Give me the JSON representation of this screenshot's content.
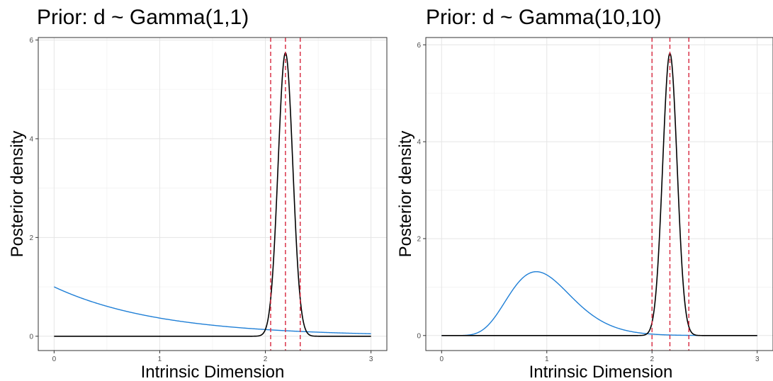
{
  "chart_data": [
    {
      "type": "line",
      "title": "Prior: d ~ Gamma(1,1)",
      "xlabel": "Intrinsic Dimension",
      "ylabel": "Posterior density",
      "xlim": [
        -0.15,
        3.15
      ],
      "ylim": [
        -0.29,
        6.05
      ],
      "xticks": [
        0,
        1,
        2,
        3
      ],
      "yticks": [
        0,
        2,
        4,
        6
      ],
      "grid": true,
      "colors": {
        "prior": "#1f7fd6",
        "posterior": "#000000",
        "vline": "#d7263d"
      },
      "series": [
        {
          "role": "prior",
          "distribution": "gamma",
          "shape": 1,
          "rate": 1,
          "x_range": [
            0,
            3
          ]
        },
        {
          "role": "posterior",
          "distribution": "normal",
          "mean": 2.19,
          "sd": 0.0695,
          "x_range": [
            0,
            3
          ]
        }
      ],
      "vlines": [
        2.05,
        2.19,
        2.33
      ]
    },
    {
      "type": "line",
      "title": "Prior: d ~ Gamma(10,10)",
      "xlabel": "Intrinsic Dimension",
      "ylabel": "Posterior density",
      "xlim": [
        -0.15,
        3.15
      ],
      "ylim": [
        -0.31,
        6.15
      ],
      "xticks": [
        0,
        1,
        2,
        3
      ],
      "yticks": [
        0,
        2,
        4,
        6
      ],
      "grid": true,
      "colors": {
        "prior": "#1f7fd6",
        "posterior": "#000000",
        "vline": "#d7263d"
      },
      "series": [
        {
          "role": "prior",
          "distribution": "gamma",
          "shape": 10,
          "rate": 10,
          "x_range": [
            0,
            3
          ]
        },
        {
          "role": "posterior",
          "distribution": "normal",
          "mean": 2.17,
          "sd": 0.0685,
          "x_range": [
            0,
            3
          ]
        }
      ],
      "vlines": [
        2.0,
        2.17,
        2.35
      ]
    }
  ]
}
